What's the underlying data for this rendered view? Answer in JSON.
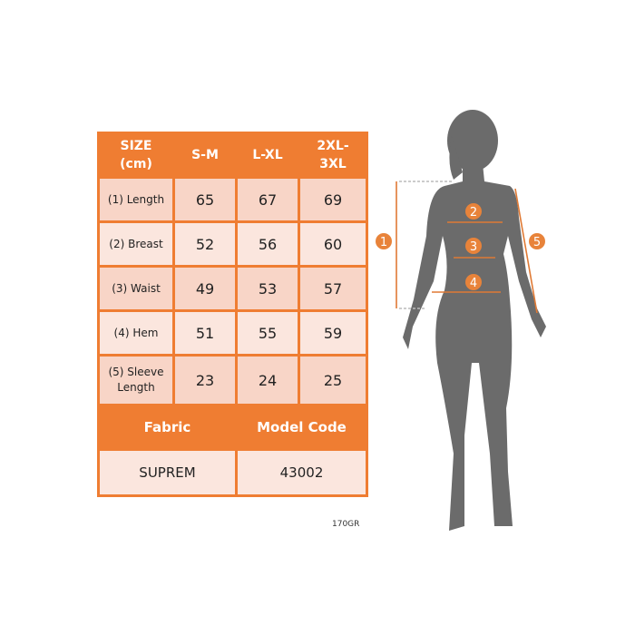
{
  "colors": {
    "accent": "#ef7d32",
    "silhouette": "#6b6b6b"
  },
  "table": {
    "header": [
      "SIZE\n(cm)",
      "S-M",
      "L-XL",
      "2XL-\n3XL"
    ],
    "rows": [
      {
        "label": "(1) Length",
        "values": [
          "65",
          "67",
          "69"
        ]
      },
      {
        "label": "(2) Breast",
        "values": [
          "52",
          "56",
          "60"
        ]
      },
      {
        "label": "(3) Waist",
        "values": [
          "49",
          "53",
          "57"
        ]
      },
      {
        "label": "(4) Hem",
        "values": [
          "51",
          "55",
          "59"
        ]
      },
      {
        "label": "(5) Sleeve Length",
        "values": [
          "23",
          "24",
          "25"
        ]
      }
    ],
    "fabric_header": "Fabric",
    "model_header": "Model Code",
    "fabric": "SUPREM",
    "model_code": "43002"
  },
  "note": "170GR",
  "figure": {
    "markers": [
      "1",
      "2",
      "3",
      "4",
      "5"
    ]
  }
}
